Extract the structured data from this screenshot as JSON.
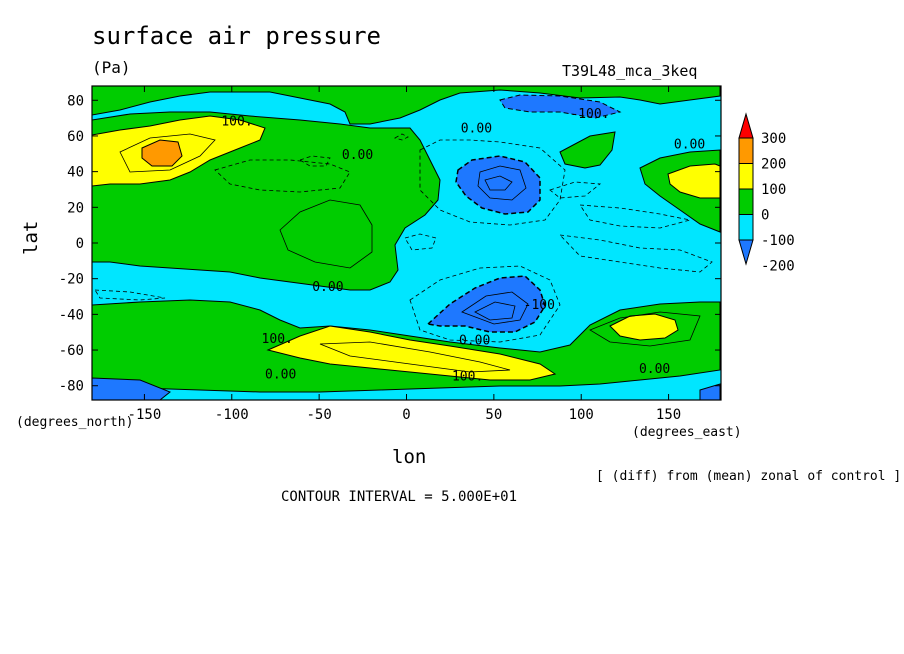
{
  "figure": {
    "title": "surface air pressure",
    "units": "(Pa)",
    "run_label": "T39L48_mca_3keq",
    "x_unit": "(degrees_east)",
    "y_unit": "(degrees_north)",
    "xlabel": "lon",
    "ylabel": "lat",
    "note": "[ (diff) from (mean) zonal of control ]",
    "contour_interval": "CONTOUR INTERVAL = 5.000E+01"
  },
  "chart_data": {
    "type": "heatmap",
    "title": "surface air pressure",
    "units": "Pa",
    "xlabel": "lon",
    "ylabel": "lat",
    "xlim": [
      -180,
      180
    ],
    "ylim": [
      -88,
      88
    ],
    "x_ticks": [
      -150,
      -100,
      -50,
      0,
      50,
      100,
      150
    ],
    "x_tick_labels": [
      "-150",
      "-100",
      "-50",
      "0",
      "50",
      "100",
      "150"
    ],
    "y_ticks": [
      -80,
      -60,
      -40,
      -20,
      0,
      20,
      40,
      60,
      80
    ],
    "y_tick_labels": [
      "-80",
      "-60",
      "-40",
      "-20",
      "0",
      "20",
      "40",
      "60",
      "80"
    ],
    "contour_interval": 50,
    "colorbar": {
      "levels": [
        -200,
        -100,
        0,
        100,
        200,
        300
      ],
      "level_labels": [
        "-200",
        "-100",
        "0",
        "100",
        "200",
        "300"
      ],
      "colors": [
        "#1e78ff",
        "#00e6ff",
        "#00cc00",
        "#ffff00",
        "#ff9900",
        "#ff0000"
      ],
      "color_names": [
        "blue",
        "cyan",
        "green",
        "yellow",
        "orange",
        "red"
      ],
      "extends": "both"
    },
    "contour_labels": [
      {
        "text": "100.",
        "lon": -97,
        "lat": 66
      },
      {
        "text": "0.00",
        "lon": 40,
        "lat": 62
      },
      {
        "text": "-100.",
        "lon": 105,
        "lat": 70
      },
      {
        "text": "0.00",
        "lon": -28,
        "lat": 47
      },
      {
        "text": "0.00",
        "lon": 162,
        "lat": 53
      },
      {
        "text": "0.00",
        "lon": -45,
        "lat": -27
      },
      {
        "text": "-100",
        "lon": 76,
        "lat": -37
      },
      {
        "text": "100.",
        "lon": -74,
        "lat": -56
      },
      {
        "text": "0.00",
        "lon": 39,
        "lat": -57
      },
      {
        "text": "0.00",
        "lon": -72,
        "lat": -76
      },
      {
        "text": "100.",
        "lon": 35,
        "lat": -77
      },
      {
        "text": "0.00",
        "lon": 142,
        "lat": -73
      }
    ],
    "regions": [
      {
        "value_range": "100 to 200",
        "color": "yellow",
        "location": "North Pacific near 150W, 40-65N"
      },
      {
        "value_range": "200 to 300",
        "color": "orange",
        "location": "North Pacific near 145W, 52N"
      },
      {
        "value_range": "100 to 200",
        "color": "yellow",
        "location": "Southern Ocean 60W-80E, 50-65S"
      },
      {
        "value_range": "100 to 200",
        "color": "yellow",
        "location": "South Pacific near 140E, 47S"
      },
      {
        "value_range": "100 to 200",
        "color": "yellow",
        "location": "North Pacific near 160E, 38N"
      },
      {
        "value_range": "-200 to -100",
        "color": "blue",
        "location": "Central Asia near 50E, 35N"
      },
      {
        "value_range": "-200 to -100",
        "color": "blue",
        "location": "South Indian Ocean near 50E, 40S"
      },
      {
        "value_range": "-200 to -100",
        "color": "blue",
        "location": "Near 50E, 78N"
      },
      {
        "value_range": "-200 to -100",
        "color": "blue",
        "location": "Antarctic coast near 180, 85S"
      }
    ]
  }
}
